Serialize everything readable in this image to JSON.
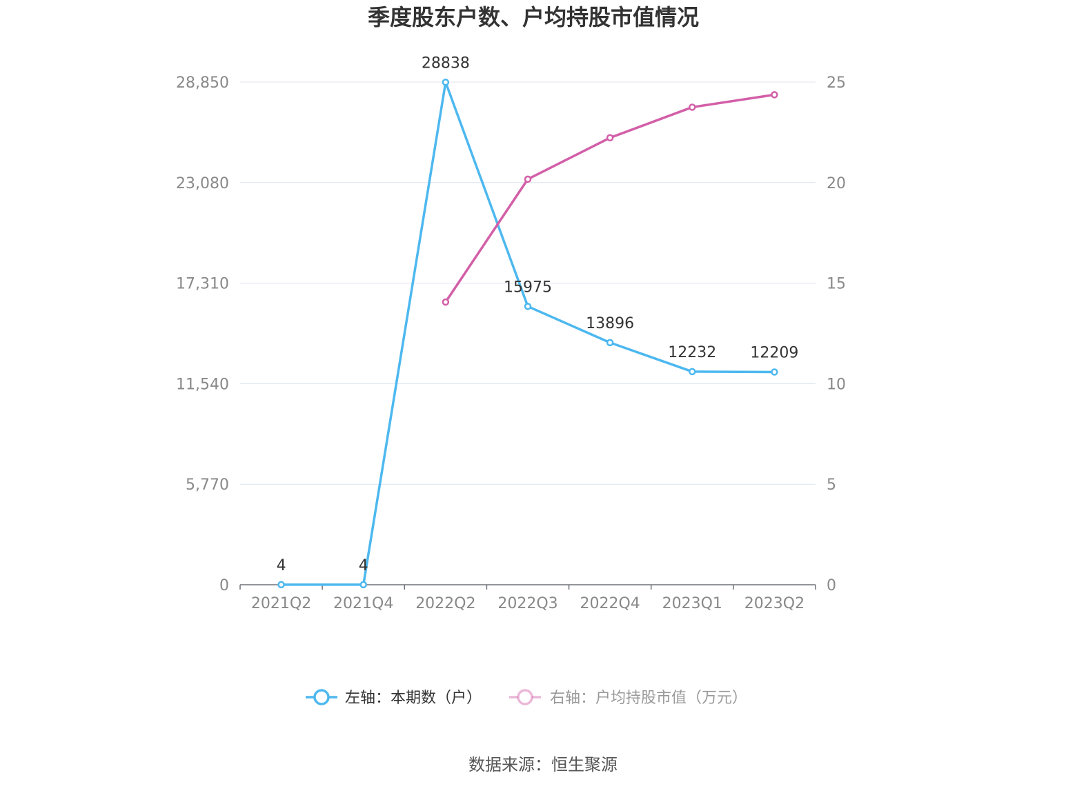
{
  "chart_data": {
    "type": "line",
    "title": "季度股东户数、户均持股市值情况",
    "categories": [
      "2021Q2",
      "2021Q4",
      "2022Q2",
      "2022Q3",
      "2022Q4",
      "2023Q1",
      "2023Q2"
    ],
    "y_left": {
      "ticks": [
        "0",
        "5,770",
        "11,540",
        "17,310",
        "23,080",
        "28,850"
      ],
      "ylim": [
        0,
        28850
      ]
    },
    "y_right": {
      "ticks": [
        "0",
        "5",
        "10",
        "15",
        "20",
        "25"
      ],
      "ylim": [
        0,
        25
      ]
    },
    "series": [
      {
        "name": "左轴：本期数（户）",
        "axis": "left",
        "color": "#4db8ef",
        "values": [
          4,
          4,
          28838,
          15975,
          13896,
          12232,
          12209
        ],
        "labels": [
          "4",
          "4",
          "28838",
          "15975",
          "13896",
          "12232",
          "12209"
        ]
      },
      {
        "name": "右轴：户均持股市值（万元）",
        "axis": "right",
        "color": "#d35fa8",
        "values": [
          null,
          null,
          14.06,
          20.17,
          22.23,
          23.75,
          24.37
        ]
      }
    ],
    "grid": true,
    "legend": "bottom"
  },
  "footer": {
    "source": "数据来源：恒生聚源"
  }
}
